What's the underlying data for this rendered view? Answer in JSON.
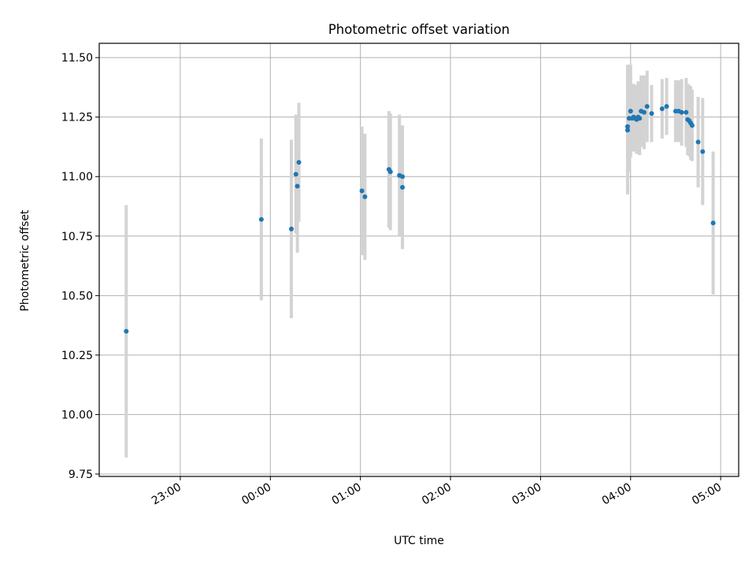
{
  "chart_data": {
    "type": "scatter",
    "title": "Photometric offset variation",
    "xlabel": "UTC time",
    "ylabel": "Photometric offset",
    "x_is_time": true,
    "xlim": [
      "22:06",
      "05:12"
    ],
    "ylim": [
      9.74,
      11.56
    ],
    "xticks": [
      "23:00",
      "00:00",
      "01:00",
      "02:00",
      "03:00",
      "04:00",
      "05:00"
    ],
    "yticks": [
      "9.75",
      "10.00",
      "10.25",
      "10.50",
      "10.75",
      "11.00",
      "11.25",
      "11.50"
    ],
    "grid": true,
    "colors": {
      "points": "#1f77b4",
      "errorbars": "#d3d3d3",
      "grid": "#b0b0b0"
    },
    "points": [
      {
        "x": "22:24",
        "y": 10.35,
        "yerr": 0.53
      },
      {
        "x": "23:54",
        "y": 10.82,
        "yerr": 0.34
      },
      {
        "x": "00:14",
        "y": 10.78,
        "yerr": 0.375
      },
      {
        "x": "00:17",
        "y": 11.01,
        "yerr": 0.25
      },
      {
        "x": "00:18",
        "y": 10.96,
        "yerr": 0.28
      },
      {
        "x": "00:19",
        "y": 11.06,
        "yerr": 0.25
      },
      {
        "x": "01:01",
        "y": 10.94,
        "yerr": 0.27
      },
      {
        "x": "01:03",
        "y": 10.915,
        "yerr": 0.265
      },
      {
        "x": "01:19",
        "y": 11.03,
        "yerr": 0.245
      },
      {
        "x": "01:20",
        "y": 11.02,
        "yerr": 0.245
      },
      {
        "x": "01:26",
        "y": 11.005,
        "yerr": 0.255
      },
      {
        "x": "01:28",
        "y": 11.0,
        "yerr": 0.21
      },
      {
        "x": "01:28",
        "y": 10.955,
        "yerr": 0.26
      },
      {
        "x": "03:58",
        "y": 11.195,
        "yerr": 0.27
      },
      {
        "x": "03:58",
        "y": 11.21,
        "yerr": 0.26
      },
      {
        "x": "03:59",
        "y": 11.245,
        "yerr": 0.225
      },
      {
        "x": "04:00",
        "y": 11.275,
        "yerr": 0.195
      },
      {
        "x": "04:01",
        "y": 11.245,
        "yerr": 0.14
      },
      {
        "x": "04:02",
        "y": 11.25,
        "yerr": 0.14
      },
      {
        "x": "04:03",
        "y": 11.245,
        "yerr": 0.14
      },
      {
        "x": "04:04",
        "y": 11.24,
        "yerr": 0.145
      },
      {
        "x": "04:05",
        "y": 11.25,
        "yerr": 0.15
      },
      {
        "x": "04:06",
        "y": 11.245,
        "yerr": 0.155
      },
      {
        "x": "04:07",
        "y": 11.275,
        "yerr": 0.15
      },
      {
        "x": "04:09",
        "y": 11.27,
        "yerr": 0.155
      },
      {
        "x": "04:11",
        "y": 11.295,
        "yerr": 0.15
      },
      {
        "x": "04:14",
        "y": 11.265,
        "yerr": 0.12
      },
      {
        "x": "04:21",
        "y": 11.285,
        "yerr": 0.125
      },
      {
        "x": "04:24",
        "y": 11.295,
        "yerr": 0.12
      },
      {
        "x": "04:30",
        "y": 11.275,
        "yerr": 0.13
      },
      {
        "x": "04:32",
        "y": 11.275,
        "yerr": 0.13
      },
      {
        "x": "04:34",
        "y": 11.27,
        "yerr": 0.14
      },
      {
        "x": "04:37",
        "y": 11.27,
        "yerr": 0.145
      },
      {
        "x": "04:38",
        "y": 11.24,
        "yerr": 0.15
      },
      {
        "x": "04:39",
        "y": 11.235,
        "yerr": 0.15
      },
      {
        "x": "04:40",
        "y": 11.225,
        "yerr": 0.155
      },
      {
        "x": "04:41",
        "y": 11.215,
        "yerr": 0.15
      },
      {
        "x": "04:45",
        "y": 11.145,
        "yerr": 0.19
      },
      {
        "x": "04:48",
        "y": 11.105,
        "yerr": 0.225
      },
      {
        "x": "04:55",
        "y": 10.805,
        "yerr": 0.3
      }
    ]
  }
}
